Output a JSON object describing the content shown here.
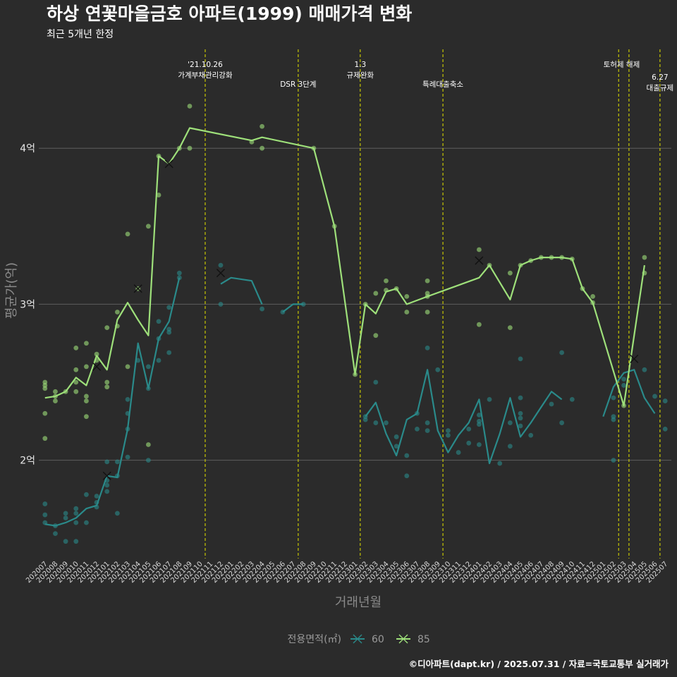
{
  "chart_data": {
    "type": "line",
    "title": "하상 연꽃마을금호 아파트(1999) 매매가격 변화",
    "subtitle": "최근 5개년 한정",
    "xlabel": "거래년월",
    "ylabel": "평균가(억)",
    "ylim": [
      1.37,
      4.67
    ],
    "y_ticks": [
      {
        "value": 2,
        "label": "2억"
      },
      {
        "value": 3,
        "label": "3억"
      },
      {
        "value": 4,
        "label": "4억"
      }
    ],
    "x_categories": [
      "202007",
      "202008",
      "202009",
      "202010",
      "202011",
      "202012",
      "202101",
      "202102",
      "202103",
      "202104",
      "202105",
      "202106",
      "202107",
      "202108",
      "202109",
      "202110",
      "202111",
      "202112",
      "202201",
      "202202",
      "202203",
      "202204",
      "202205",
      "202206",
      "202207",
      "202208",
      "202209",
      "202210",
      "202211",
      "202212",
      "202301",
      "202302",
      "202303",
      "202304",
      "202305",
      "202306",
      "202307",
      "202308",
      "202309",
      "202310",
      "202311",
      "202312",
      "202401",
      "202402",
      "202403",
      "202404",
      "202405",
      "202406",
      "202407",
      "202408",
      "202409",
      "202410",
      "202411",
      "202412",
      "202501",
      "202502",
      "202503",
      "202504",
      "202505",
      "202506",
      "202507"
    ],
    "grid": true,
    "legend": {
      "title": "전용면적(㎡)",
      "position": "bottom"
    },
    "series": [
      {
        "name": "60",
        "color": "#2a8a8a",
        "line": [
          [
            "202007",
            1.59
          ],
          [
            "202008",
            1.58
          ],
          [
            "202009",
            1.6
          ],
          [
            "202010",
            1.63
          ],
          [
            "202011",
            1.69
          ],
          [
            "202012",
            1.71
          ],
          [
            "202101",
            1.9
          ],
          [
            "202102",
            1.89
          ],
          [
            "202103",
            2.2
          ],
          [
            "202104",
            2.75
          ],
          [
            "202105",
            2.46
          ],
          [
            "202106",
            2.78
          ],
          [
            "202107",
            2.89
          ],
          [
            "202108",
            3.17
          ],
          null,
          [
            "202112",
            3.13
          ],
          [
            "202201",
            3.17
          ],
          [
            "202203",
            3.15
          ],
          [
            "202204",
            3.0
          ],
          null,
          [
            "202206",
            2.95
          ],
          [
            "202207",
            3.0
          ],
          [
            "202208",
            3.0
          ],
          null,
          [
            "202302",
            2.28
          ],
          [
            "202303",
            2.37
          ],
          [
            "202304",
            2.17
          ],
          [
            "202305",
            2.03
          ],
          [
            "202306",
            2.26
          ],
          [
            "202307",
            2.3
          ],
          [
            "202308",
            2.58
          ],
          [
            "202309",
            2.19
          ],
          [
            "202310",
            2.05
          ],
          [
            "202311",
            2.16
          ],
          [
            "202312",
            2.24
          ],
          [
            "202401",
            2.39
          ],
          [
            "202402",
            1.98
          ],
          [
            "202403",
            2.17
          ],
          [
            "202404",
            2.4
          ],
          [
            "202405",
            2.15
          ],
          [
            "202406",
            2.24
          ],
          [
            "202407",
            2.34
          ],
          [
            "202408",
            2.44
          ],
          [
            "202409",
            2.39
          ],
          null,
          [
            "202501",
            2.28
          ],
          [
            "202502",
            2.47
          ],
          [
            "202503",
            2.56
          ],
          [
            "202504",
            2.58
          ],
          [
            "202505",
            2.4
          ],
          [
            "202506",
            2.3
          ]
        ],
        "points": [
          [
            "202007",
            1.72
          ],
          [
            "202007",
            1.65
          ],
          [
            "202007",
            1.6
          ],
          [
            "202008",
            1.58
          ],
          [
            "202008",
            1.53
          ],
          [
            "202009",
            1.66
          ],
          [
            "202009",
            1.63
          ],
          [
            "202009",
            1.48
          ],
          [
            "202010",
            1.69
          ],
          [
            "202010",
            1.66
          ],
          [
            "202010",
            1.6
          ],
          [
            "202010",
            1.48
          ],
          [
            "202011",
            1.78
          ],
          [
            "202011",
            1.6
          ],
          [
            "202012",
            1.77
          ],
          [
            "202012",
            1.73
          ],
          [
            "202012",
            1.7
          ],
          [
            "202101",
            1.99
          ],
          [
            "202101",
            1.87
          ],
          [
            "202101",
            1.84
          ],
          [
            "202101",
            1.8
          ],
          [
            "202102",
            1.99
          ],
          [
            "202102",
            1.9
          ],
          [
            "202102",
            1.66
          ],
          [
            "202103",
            2.39
          ],
          [
            "202103",
            2.3
          ],
          [
            "202103",
            2.2
          ],
          [
            "202103",
            2.02
          ],
          [
            "202104",
            2.64
          ],
          [
            "202105",
            2.6
          ],
          [
            "202105",
            2.46
          ],
          [
            "202105",
            2.0
          ],
          [
            "202106",
            2.89
          ],
          [
            "202106",
            2.64
          ],
          [
            "202106",
            2.78
          ],
          [
            "202107",
            2.98
          ],
          [
            "202107",
            2.84
          ],
          [
            "202107",
            2.82
          ],
          [
            "202107",
            2.69
          ],
          [
            "202108",
            3.2
          ],
          [
            "202108",
            3.17
          ],
          [
            "202112",
            3.25
          ],
          [
            "202112",
            3.0
          ],
          [
            "202204",
            2.97
          ],
          [
            "202206",
            2.95
          ],
          [
            "202208",
            3.0
          ],
          [
            "202302",
            2.28
          ],
          [
            "202302",
            2.26
          ],
          [
            "202303",
            2.5
          ],
          [
            "202303",
            2.24
          ],
          [
            "202304",
            2.24
          ],
          [
            "202305",
            2.15
          ],
          [
            "202305",
            2.09
          ],
          [
            "202306",
            2.03
          ],
          [
            "202306",
            1.9
          ],
          [
            "202307",
            2.3
          ],
          [
            "202307",
            2.2
          ],
          [
            "202308",
            2.72
          ],
          [
            "202308",
            2.24
          ],
          [
            "202308",
            2.19
          ],
          [
            "202309",
            2.58
          ],
          [
            "202310",
            2.19
          ],
          [
            "202310",
            2.16
          ],
          [
            "202311",
            2.05
          ],
          [
            "202312",
            2.2
          ],
          [
            "202312",
            2.11
          ],
          [
            "202401",
            2.29
          ],
          [
            "202401",
            2.25
          ],
          [
            "202401",
            2.23
          ],
          [
            "202401",
            2.1
          ],
          [
            "202402",
            2.39
          ],
          [
            "202403",
            1.98
          ],
          [
            "202404",
            2.24
          ],
          [
            "202404",
            2.09
          ],
          [
            "202405",
            2.65
          ],
          [
            "202405",
            2.4
          ],
          [
            "202405",
            2.3
          ],
          [
            "202405",
            2.27
          ],
          [
            "202405",
            2.22
          ],
          [
            "202406",
            2.16
          ],
          [
            "202408",
            2.36
          ],
          [
            "202409",
            2.69
          ],
          [
            "202409",
            2.24
          ],
          [
            "202410",
            2.39
          ],
          [
            "202502",
            2.4
          ],
          [
            "202502",
            2.26
          ],
          [
            "202502",
            2.28
          ],
          [
            "202502",
            2.0
          ],
          [
            "202503",
            2.52
          ],
          [
            "202503",
            2.48
          ],
          [
            "202505",
            2.58
          ],
          [
            "202506",
            2.41
          ],
          [
            "202507",
            2.38
          ],
          [
            "202507",
            2.2
          ]
        ],
        "markers": [
          [
            "202101",
            1.9
          ],
          [
            "202112",
            3.2
          ],
          [
            "202504",
            2.65
          ]
        ]
      },
      {
        "name": "85",
        "color": "#9ee07a",
        "line": [
          [
            "202007",
            2.4
          ],
          [
            "202008",
            2.41
          ],
          [
            "202009",
            2.44
          ],
          [
            "202010",
            2.53
          ],
          [
            "202011",
            2.48
          ],
          [
            "202012",
            2.67
          ],
          [
            "202101",
            2.58
          ],
          [
            "202102",
            2.9
          ],
          [
            "202103",
            3.01
          ],
          [
            "202104",
            2.9
          ],
          [
            "202105",
            2.8
          ],
          [
            "202106",
            3.95
          ],
          [
            "202107",
            3.9
          ],
          [
            "202108",
            4.0
          ],
          [
            "202109",
            4.13
          ],
          [
            "202203",
            4.05
          ],
          [
            "202204",
            4.07
          ],
          [
            "202209",
            4.0
          ],
          [
            "202211",
            3.5
          ],
          [
            "202301",
            2.55
          ],
          [
            "202302",
            3.0
          ],
          [
            "202303",
            2.94
          ],
          [
            "202304",
            3.08
          ],
          [
            "202305",
            3.1
          ],
          [
            "202306",
            3.0
          ],
          [
            "202308",
            3.05
          ],
          [
            "202401",
            3.17
          ],
          [
            "202402",
            3.25
          ],
          [
            "202404",
            3.03
          ],
          [
            "202405",
            3.25
          ],
          [
            "202406",
            3.28
          ],
          [
            "202407",
            3.3
          ],
          [
            "202408",
            3.3
          ],
          [
            "202409",
            3.3
          ],
          [
            "202410",
            3.29
          ],
          [
            "202411",
            3.1
          ],
          [
            "202412",
            3.01
          ],
          [
            "202503",
            2.35
          ],
          [
            "202505",
            3.25
          ]
        ],
        "points": [
          [
            "202007",
            2.5
          ],
          [
            "202007",
            2.48
          ],
          [
            "202007",
            2.46
          ],
          [
            "202007",
            2.3
          ],
          [
            "202007",
            2.14
          ],
          [
            "202008",
            2.44
          ],
          [
            "202008",
            2.41
          ],
          [
            "202008",
            2.38
          ],
          [
            "202009",
            2.44
          ],
          [
            "202010",
            2.72
          ],
          [
            "202010",
            2.58
          ],
          [
            "202010",
            2.5
          ],
          [
            "202010",
            2.44
          ],
          [
            "202011",
            2.75
          ],
          [
            "202011",
            2.6
          ],
          [
            "202011",
            2.41
          ],
          [
            "202011",
            2.38
          ],
          [
            "202011",
            2.28
          ],
          [
            "202012",
            2.68
          ],
          [
            "202012",
            2.64
          ],
          [
            "202101",
            2.85
          ],
          [
            "202101",
            2.5
          ],
          [
            "202101",
            2.47
          ],
          [
            "202102",
            2.95
          ],
          [
            "202102",
            2.86
          ],
          [
            "202103",
            3.45
          ],
          [
            "202103",
            2.6
          ],
          [
            "202104",
            3.1
          ],
          [
            "202105",
            3.5
          ],
          [
            "202105",
            2.1
          ],
          [
            "202106",
            3.95
          ],
          [
            "202106",
            3.7
          ],
          [
            "202108",
            4.0
          ],
          [
            "202109",
            4.27
          ],
          [
            "202109",
            4.0
          ],
          [
            "202203",
            4.04
          ],
          [
            "202204",
            4.14
          ],
          [
            "202204",
            4.0
          ],
          [
            "202209",
            4.0
          ],
          [
            "202211",
            3.5
          ],
          [
            "202301",
            2.55
          ],
          [
            "202302",
            3.0
          ],
          [
            "202303",
            3.07
          ],
          [
            "202303",
            2.8
          ],
          [
            "202304",
            3.15
          ],
          [
            "202304",
            3.09
          ],
          [
            "202305",
            3.1
          ],
          [
            "202306",
            3.05
          ],
          [
            "202306",
            2.95
          ],
          [
            "202308",
            3.15
          ],
          [
            "202308",
            3.07
          ],
          [
            "202308",
            3.05
          ],
          [
            "202308",
            2.95
          ],
          [
            "202401",
            3.35
          ],
          [
            "202401",
            2.87
          ],
          [
            "202402",
            3.25
          ],
          [
            "202404",
            3.2
          ],
          [
            "202404",
            2.85
          ],
          [
            "202405",
            3.25
          ],
          [
            "202406",
            3.28
          ],
          [
            "202407",
            3.3
          ],
          [
            "202408",
            3.3
          ],
          [
            "202409",
            3.3
          ],
          [
            "202410",
            3.29
          ],
          [
            "202411",
            3.1
          ],
          [
            "202412",
            3.05
          ],
          [
            "202412",
            3.01
          ],
          [
            "202503",
            2.35
          ],
          [
            "202505",
            3.3
          ],
          [
            "202505",
            3.2
          ]
        ],
        "markers": [
          [
            "202012",
            2.6
          ],
          [
            "202104",
            3.1
          ],
          [
            "202107",
            3.9
          ],
          [
            "202401",
            3.28
          ]
        ]
      }
    ],
    "events": [
      {
        "x": 15.5,
        "lines": [
          "'21.10.26",
          "가계부채관리강화"
        ],
        "level": 0
      },
      {
        "x": 24.5,
        "lines": [
          "DSR 3단계"
        ],
        "level": 1
      },
      {
        "x": 30.5,
        "lines": [
          "1.3",
          "규제완화"
        ],
        "level": 0
      },
      {
        "x": 38.5,
        "lines": [
          "특례대출축소"
        ],
        "level": 1
      },
      {
        "x": 55.5,
        "lines": [
          "토허제 해제"
        ],
        "level": 0,
        "anchor": "end"
      },
      {
        "x": 56.5,
        "lines": [],
        "level": 0
      },
      {
        "x": 59.5,
        "lines": [
          "6.27",
          "대출규제"
        ],
        "level": 1
      }
    ]
  },
  "caption": "©디아파트(dapt.kr) / 2025.07.31 / 자료=국토교통부 실거래가"
}
